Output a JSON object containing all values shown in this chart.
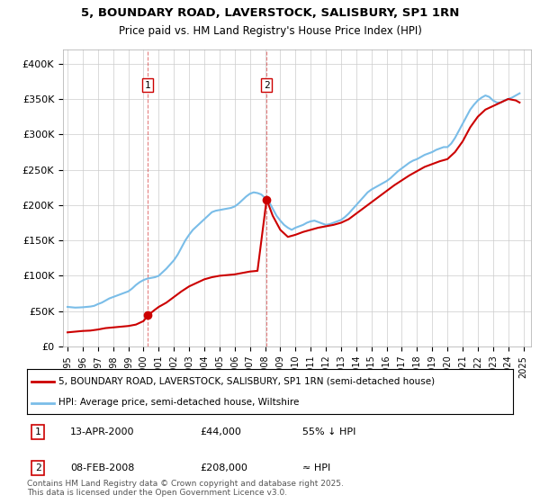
{
  "title": "5, BOUNDARY ROAD, LAVERSTOCK, SALISBURY, SP1 1RN",
  "subtitle": "Price paid vs. HM Land Registry's House Price Index (HPI)",
  "ylabel_ticks": [
    "£0",
    "£50K",
    "£100K",
    "£150K",
    "£200K",
    "£250K",
    "£300K",
    "£350K",
    "£400K"
  ],
  "ytick_values": [
    0,
    50000,
    100000,
    150000,
    200000,
    250000,
    300000,
    350000,
    400000
  ],
  "ylim": [
    0,
    420000
  ],
  "xlim_start": 1994.7,
  "xlim_end": 2025.5,
  "transaction_dates": [
    2000.28,
    2008.1
  ],
  "transaction_prices": [
    44000,
    208000
  ],
  "transaction_labels": [
    "1",
    "2"
  ],
  "vline_dates": [
    2000.28,
    2008.1
  ],
  "annotation_info": [
    {
      "label": "1",
      "date": "13-APR-2000",
      "price": "£44,000",
      "note": "55% ↓ HPI"
    },
    {
      "label": "2",
      "date": "08-FEB-2008",
      "price": "£208,000",
      "note": "≈ HPI"
    }
  ],
  "hpi_line_color": "#7abde8",
  "price_line_color": "#cc0000",
  "vline_color": "#cc0000",
  "background_color": "#ffffff",
  "plot_bg_color": "#ffffff",
  "grid_color": "#cccccc",
  "legend_text_1": "5, BOUNDARY ROAD, LAVERSTOCK, SALISBURY, SP1 1RN (semi-detached house)",
  "legend_text_2": "HPI: Average price, semi-detached house, Wiltshire",
  "footer_text": "Contains HM Land Registry data © Crown copyright and database right 2025.\nThis data is licensed under the Open Government Licence v3.0.",
  "hpi_data_x": [
    1995.0,
    1995.25,
    1995.5,
    1995.75,
    1996.0,
    1996.25,
    1996.5,
    1996.75,
    1997.0,
    1997.25,
    1997.5,
    1997.75,
    1998.0,
    1998.25,
    1998.5,
    1998.75,
    1999.0,
    1999.25,
    1999.5,
    1999.75,
    2000.0,
    2000.25,
    2000.5,
    2000.75,
    2001.0,
    2001.25,
    2001.5,
    2001.75,
    2002.0,
    2002.25,
    2002.5,
    2002.75,
    2003.0,
    2003.25,
    2003.5,
    2003.75,
    2004.0,
    2004.25,
    2004.5,
    2004.75,
    2005.0,
    2005.25,
    2005.5,
    2005.75,
    2006.0,
    2006.25,
    2006.5,
    2006.75,
    2007.0,
    2007.25,
    2007.5,
    2007.75,
    2008.0,
    2008.25,
    2008.5,
    2008.75,
    2009.0,
    2009.25,
    2009.5,
    2009.75,
    2010.0,
    2010.25,
    2010.5,
    2010.75,
    2011.0,
    2011.25,
    2011.5,
    2011.75,
    2012.0,
    2012.25,
    2012.5,
    2012.75,
    2013.0,
    2013.25,
    2013.5,
    2013.75,
    2014.0,
    2014.25,
    2014.5,
    2014.75,
    2015.0,
    2015.25,
    2015.5,
    2015.75,
    2016.0,
    2016.25,
    2016.5,
    2016.75,
    2017.0,
    2017.25,
    2017.5,
    2017.75,
    2018.0,
    2018.25,
    2018.5,
    2018.75,
    2019.0,
    2019.25,
    2019.5,
    2019.75,
    2020.0,
    2020.25,
    2020.5,
    2020.75,
    2021.0,
    2021.25,
    2021.5,
    2021.75,
    2022.0,
    2022.25,
    2022.5,
    2022.75,
    2023.0,
    2023.25,
    2023.5,
    2023.75,
    2024.0,
    2024.25,
    2024.5,
    2024.75
  ],
  "hpi_data_y": [
    56000,
    55500,
    55000,
    55200,
    55500,
    56000,
    56500,
    57500,
    60000,
    62000,
    65000,
    68000,
    70000,
    72000,
    74000,
    76000,
    78000,
    82000,
    87000,
    91000,
    94000,
    96000,
    97000,
    98000,
    100000,
    105000,
    110000,
    116000,
    122000,
    130000,
    140000,
    150000,
    158000,
    165000,
    170000,
    175000,
    180000,
    185000,
    190000,
    192000,
    193000,
    194000,
    195000,
    196000,
    198000,
    202000,
    207000,
    212000,
    216000,
    218000,
    217000,
    215000,
    210000,
    205000,
    195000,
    185000,
    178000,
    172000,
    168000,
    165000,
    168000,
    170000,
    172000,
    175000,
    177000,
    178000,
    176000,
    174000,
    172000,
    173000,
    175000,
    177000,
    179000,
    183000,
    188000,
    194000,
    200000,
    206000,
    212000,
    218000,
    222000,
    225000,
    228000,
    231000,
    234000,
    238000,
    243000,
    248000,
    252000,
    256000,
    260000,
    263000,
    265000,
    268000,
    271000,
    273000,
    275000,
    278000,
    280000,
    282000,
    282000,
    287000,
    295000,
    305000,
    315000,
    325000,
    335000,
    342000,
    348000,
    352000,
    355000,
    353000,
    348000,
    345000,
    345000,
    348000,
    350000,
    352000,
    355000,
    358000
  ],
  "price_data_x": [
    1995.0,
    1995.5,
    1996.0,
    1996.5,
    1997.0,
    1997.5,
    1998.0,
    1998.5,
    1999.0,
    1999.5,
    2000.0,
    2000.28,
    2000.28,
    2000.75,
    2001.0,
    2001.5,
    2002.0,
    2002.5,
    2003.0,
    2003.5,
    2004.0,
    2004.5,
    2005.0,
    2005.5,
    2006.0,
    2006.5,
    2007.0,
    2007.5,
    2008.1,
    2008.1,
    2008.5,
    2009.0,
    2009.5,
    2010.0,
    2010.5,
    2011.0,
    2011.5,
    2012.0,
    2012.5,
    2013.0,
    2013.5,
    2014.0,
    2014.5,
    2015.0,
    2015.5,
    2016.0,
    2016.5,
    2017.0,
    2017.5,
    2018.0,
    2018.5,
    2019.0,
    2019.5,
    2020.0,
    2020.5,
    2021.0,
    2021.5,
    2022.0,
    2022.5,
    2023.0,
    2023.5,
    2024.0,
    2024.5,
    2024.75
  ],
  "price_data_y": [
    20000,
    21000,
    22000,
    22500,
    24000,
    26000,
    27000,
    28000,
    29000,
    31000,
    36000,
    44000,
    44000,
    52000,
    56000,
    62000,
    70000,
    78000,
    85000,
    90000,
    95000,
    98000,
    100000,
    101000,
    102000,
    104000,
    106000,
    107000,
    208000,
    208000,
    185000,
    165000,
    155000,
    158000,
    162000,
    165000,
    168000,
    170000,
    172000,
    175000,
    180000,
    188000,
    196000,
    204000,
    212000,
    220000,
    228000,
    235000,
    242000,
    248000,
    254000,
    258000,
    262000,
    265000,
    275000,
    290000,
    310000,
    325000,
    335000,
    340000,
    345000,
    350000,
    348000,
    345000
  ]
}
